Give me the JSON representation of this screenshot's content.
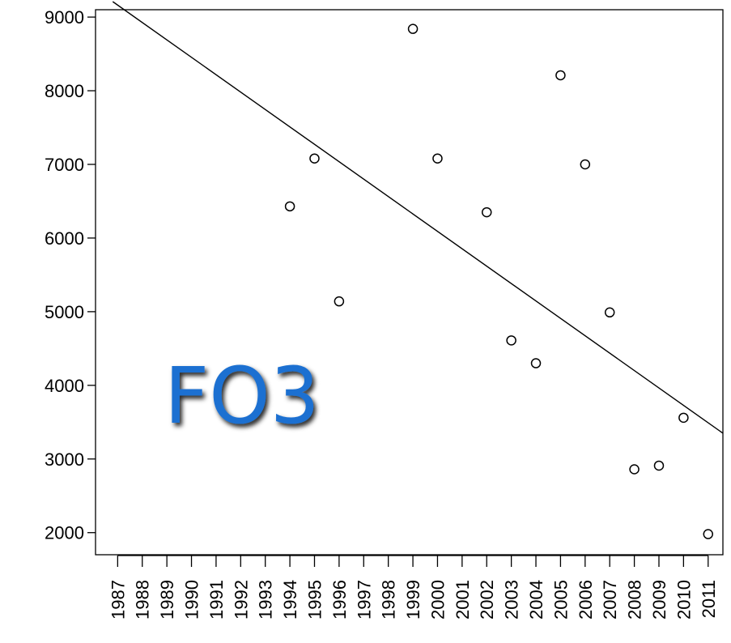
{
  "chart_data": {
    "type": "scatter",
    "title": "",
    "xlabel": "",
    "ylabel": "",
    "x_categories": [
      "1987",
      "1988",
      "1989",
      "1990",
      "1991",
      "1992",
      "1993",
      "1994",
      "1995",
      "1996",
      "1997",
      "1998",
      "1999",
      "2000",
      "2001",
      "2002",
      "2003",
      "2004",
      "2005",
      "2006",
      "2007",
      "2008",
      "2009",
      "2010",
      "2011"
    ],
    "y_ticks": [
      2000,
      3000,
      4000,
      5000,
      6000,
      7000,
      8000,
      9000
    ],
    "xlim": [
      1986.1,
      2011.6
    ],
    "ylim": [
      1700,
      9100
    ],
    "points": [
      {
        "x": 1994,
        "y": 6430
      },
      {
        "x": 1995,
        "y": 7080
      },
      {
        "x": 1996,
        "y": 5140
      },
      {
        "x": 1999,
        "y": 8840
      },
      {
        "x": 2000,
        "y": 7080
      },
      {
        "x": 2002,
        "y": 6350
      },
      {
        "x": 2003,
        "y": 4610
      },
      {
        "x": 2004,
        "y": 4300
      },
      {
        "x": 2005,
        "y": 8210
      },
      {
        "x": 2006,
        "y": 7000
      },
      {
        "x": 2007,
        "y": 4990
      },
      {
        "x": 2008,
        "y": 2860
      },
      {
        "x": 2009,
        "y": 2910
      },
      {
        "x": 2010,
        "y": 3560
      },
      {
        "x": 2011,
        "y": 1980
      }
    ],
    "trend_line": {
      "x1": 1986.8,
      "y1": 9210,
      "x2": 2011.6,
      "y2": 3350
    },
    "grid": false,
    "legend": "none",
    "overlay_text": "FO3",
    "overlay_color": "#1a6fd1",
    "line_color": "#000000",
    "marker_color": "#000000"
  }
}
